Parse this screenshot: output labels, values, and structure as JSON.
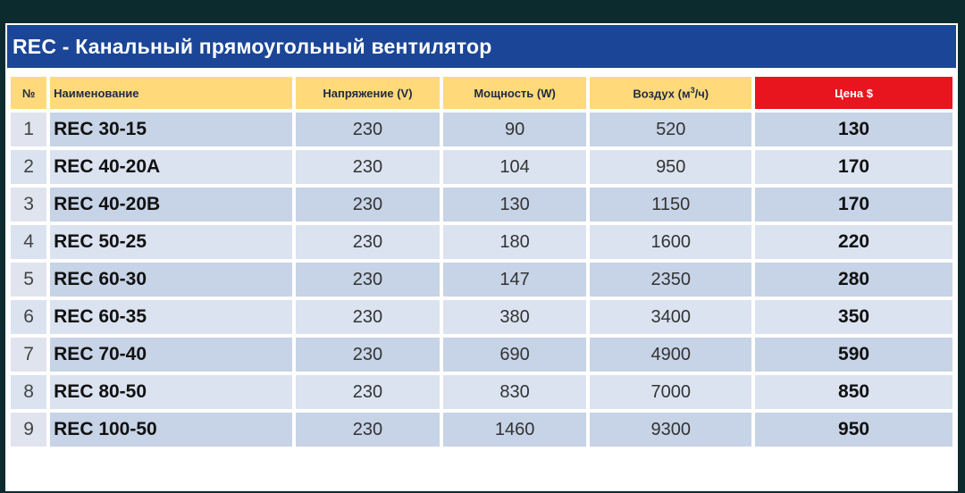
{
  "title": "REC - Канальный прямоугольный вентилятор",
  "headers": {
    "num": "№",
    "name": "Наименование",
    "voltage": "Напряжение (V)",
    "power": "Мощность (W)",
    "air_prefix": "Воздух (м",
    "air_sup": "3",
    "air_suffix": "/ч)",
    "price": "Цена $"
  },
  "rows": [
    {
      "num": "1",
      "name": "REC 30-15",
      "voltage": "230",
      "power": "90",
      "air": "520",
      "price": "130"
    },
    {
      "num": "2",
      "name": "REC 40-20A",
      "voltage": "230",
      "power": "104",
      "air": "950",
      "price": "170"
    },
    {
      "num": "3",
      "name": "REC 40-20B",
      "voltage": "230",
      "power": "130",
      "air": "1150",
      "price": "170"
    },
    {
      "num": "4",
      "name": "REC 50-25",
      "voltage": "230",
      "power": "180",
      "air": "1600",
      "price": "220"
    },
    {
      "num": "5",
      "name": "REC 60-30",
      "voltage": "230",
      "power": "147",
      "air": "2350",
      "price": "280"
    },
    {
      "num": "6",
      "name": "REC 60-35",
      "voltage": "230",
      "power": "380",
      "air": "3400",
      "price": "350"
    },
    {
      "num": "7",
      "name": "REC 70-40",
      "voltage": "230",
      "power": "690",
      "air": "4900",
      "price": "590"
    },
    {
      "num": "8",
      "name": "REC 80-50",
      "voltage": "230",
      "power": "830",
      "air": "7000",
      "price": "850"
    },
    {
      "num": "9",
      "name": "REC 100-50",
      "voltage": "230",
      "power": "1460",
      "air": "9300",
      "price": "950"
    }
  ],
  "colors": {
    "frame": "#0b2b2e",
    "title_bg": "#1b4697",
    "header_bg": "#ffd97a",
    "price_header_bg": "#e8141e",
    "row_bg": "#c7d3e6",
    "row_alt_bg": "#dbe3f1"
  }
}
